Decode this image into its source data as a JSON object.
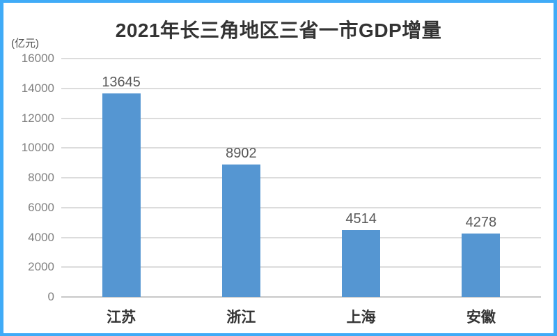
{
  "page": {
    "title": "2021年长三角地区三省一市GDP增量",
    "unit_label": "(亿元)"
  },
  "colors": {
    "frame_border": "#40ABF7",
    "bar_fill": "#5596D2",
    "gridline": "#DCDCDC",
    "axis_line": "#C8C8C8",
    "title_text": "#333333",
    "tick_text": "#808080",
    "value_text": "#595959",
    "category_text": "#333333",
    "unit_text": "#4D4D4D",
    "background": "#FFFFFF"
  },
  "chart_data": {
    "type": "bar",
    "title": "2021年长三角地区三省一市GDP增量",
    "unit": "(亿元)",
    "categories": [
      "江苏",
      "浙江",
      "上海",
      "安徽"
    ],
    "values": [
      13645,
      8902,
      4514,
      4278
    ],
    "value_labels": true,
    "ylim": [
      0,
      16000
    ],
    "yticks": [
      0,
      2000,
      4000,
      6000,
      8000,
      10000,
      12000,
      14000,
      16000
    ],
    "xlabel": "",
    "ylabel": "(亿元)",
    "grid": true,
    "legend": "none",
    "bar_color": "#5596D2"
  }
}
